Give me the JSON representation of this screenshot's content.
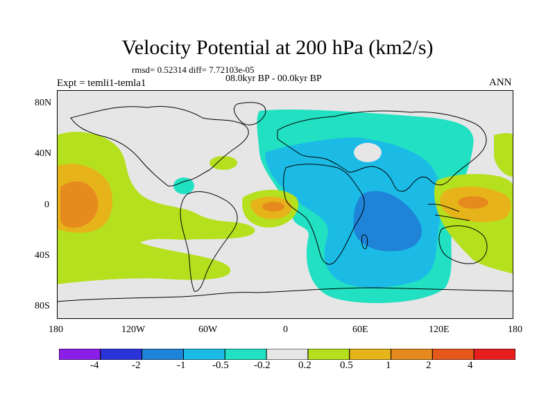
{
  "title": "Velocity Potential at 200 hPa (km2/s)",
  "stats": "rmsd= 0.52314 diff= 7.72103e-05",
  "period": "08.0kyr BP - 00.0kyr BP",
  "expt": "Expt = temli1-temla1",
  "season": "ANN",
  "lat_labels": [
    "80N",
    "40N",
    "0",
    "40S",
    "80S"
  ],
  "lon_labels": [
    "180",
    "120W",
    "60W",
    "0",
    "60E",
    "120E",
    "180"
  ],
  "colorbar": {
    "labels": [
      "-4",
      "-2",
      "-1",
      "-0.5",
      "-0.2",
      "0.2",
      "0.5",
      "1",
      "2",
      "4"
    ],
    "colors": [
      "#8a1ee6",
      "#2b34d8",
      "#1f84d8",
      "#1bbbe6",
      "#22e0c2",
      "#e6e6e6",
      "#b5e01e",
      "#e6b41a",
      "#e68a1e",
      "#e6581a",
      "#e61e1e"
    ]
  },
  "palette": {
    "ocean_bg": "#e6e6e6",
    "pos1": "#b5e01e",
    "pos2": "#e6b41a",
    "pos3": "#e68a1e",
    "neg1": "#22e0c2",
    "neg2": "#1bbbe6",
    "neg3": "#1f84d8",
    "coast": "#000000"
  }
}
